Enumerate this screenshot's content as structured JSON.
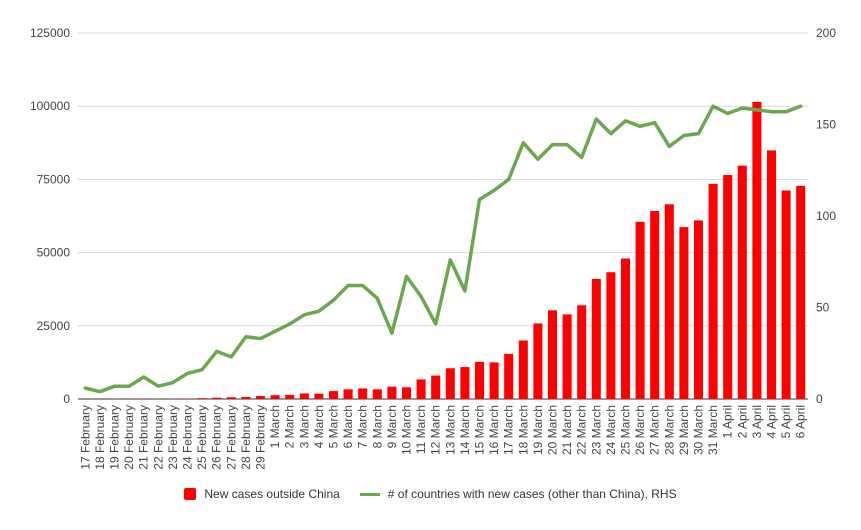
{
  "chart_data": {
    "type": "bar+line",
    "categories": [
      "17 February",
      "18 February",
      "19 February",
      "20 February",
      "21 February",
      "22 February",
      "23 February",
      "24 February",
      "25 February",
      "26 February",
      "27 February",
      "28 February",
      "29 February",
      "1 March",
      "2 March",
      "3 March",
      "4 March",
      "5 March",
      "6 March",
      "7 March",
      "8 March",
      "9 March",
      "10 March",
      "11 March",
      "12 March",
      "13 March",
      "14 March",
      "15 March",
      "16 March",
      "17 March",
      "18 March",
      "19 March",
      "20 March",
      "21 March",
      "22 March",
      "23 March",
      "24 March",
      "25 March",
      "26 March",
      "27 March",
      "28 March",
      "29 March",
      "30 March",
      "31 March",
      "1 April",
      "2 April",
      "3 April",
      "4 April",
      "5 April",
      "6 April"
    ],
    "series": [
      {
        "name": "New cases outside China",
        "type": "bar",
        "axis": "left",
        "color": "#ff0000",
        "values": [
          20,
          30,
          40,
          40,
          50,
          50,
          60,
          100,
          300,
          450,
          600,
          700,
          1000,
          1300,
          1400,
          1900,
          1800,
          2700,
          3300,
          3600,
          3300,
          4200,
          4000,
          6700,
          8000,
          10500,
          10900,
          12700,
          12500,
          15400,
          20000,
          25800,
          30300,
          28900,
          32000,
          41000,
          43300,
          48000,
          60500,
          64200,
          66500,
          58700,
          61000,
          73500,
          76500,
          79700,
          101500,
          84900,
          71200,
          72800
        ]
      },
      {
        "name": "# of countries with new cases (other than China), RHS",
        "type": "line",
        "axis": "right",
        "color": "#6aa84f",
        "values": [
          6,
          4,
          7,
          7,
          12,
          7,
          9,
          14,
          16,
          26,
          23,
          34,
          33,
          37,
          41,
          46,
          48,
          54,
          62,
          62,
          55,
          36,
          67,
          56,
          41,
          76,
          59,
          109,
          114,
          120,
          140,
          131,
          139,
          139,
          132,
          153,
          145,
          152,
          149,
          151,
          138,
          144,
          145,
          160,
          156,
          159,
          158,
          157,
          157,
          160
        ]
      }
    ],
    "y_left": {
      "ylim": [
        0,
        125000
      ],
      "ticks": [
        "0",
        "25000",
        "50000",
        "75000",
        "100000",
        "125000"
      ]
    },
    "y_right": {
      "ylim": [
        0,
        200
      ],
      "ticks": [
        "0",
        "50",
        "100",
        "150",
        "200"
      ]
    },
    "grid": true,
    "legend_position": "bottom"
  }
}
